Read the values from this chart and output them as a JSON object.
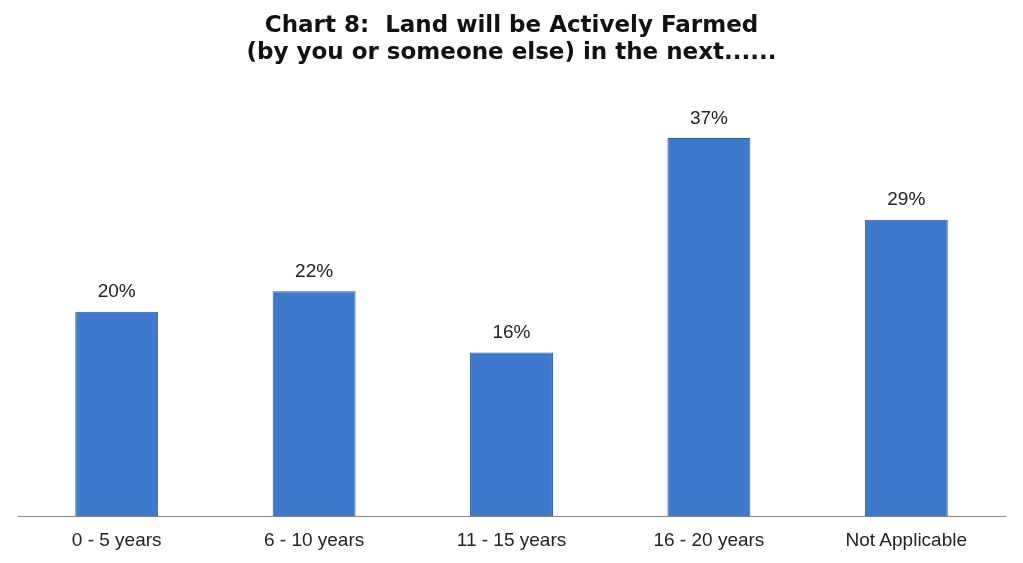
{
  "chart_data": {
    "type": "bar",
    "title": "Chart 8:  Land will be Actively Farmed\n(by you or someone else) in the next......",
    "categories": [
      "0 - 5 years",
      "6 - 10 years",
      "11 - 15 years",
      "16 - 20 years",
      "Not Applicable"
    ],
    "values": [
      20,
      22,
      16,
      37,
      29
    ],
    "value_labels": [
      "20%",
      "22%",
      "16%",
      "37%",
      "29%"
    ],
    "color": "#3d7acb",
    "grid": false,
    "legend": false
  }
}
